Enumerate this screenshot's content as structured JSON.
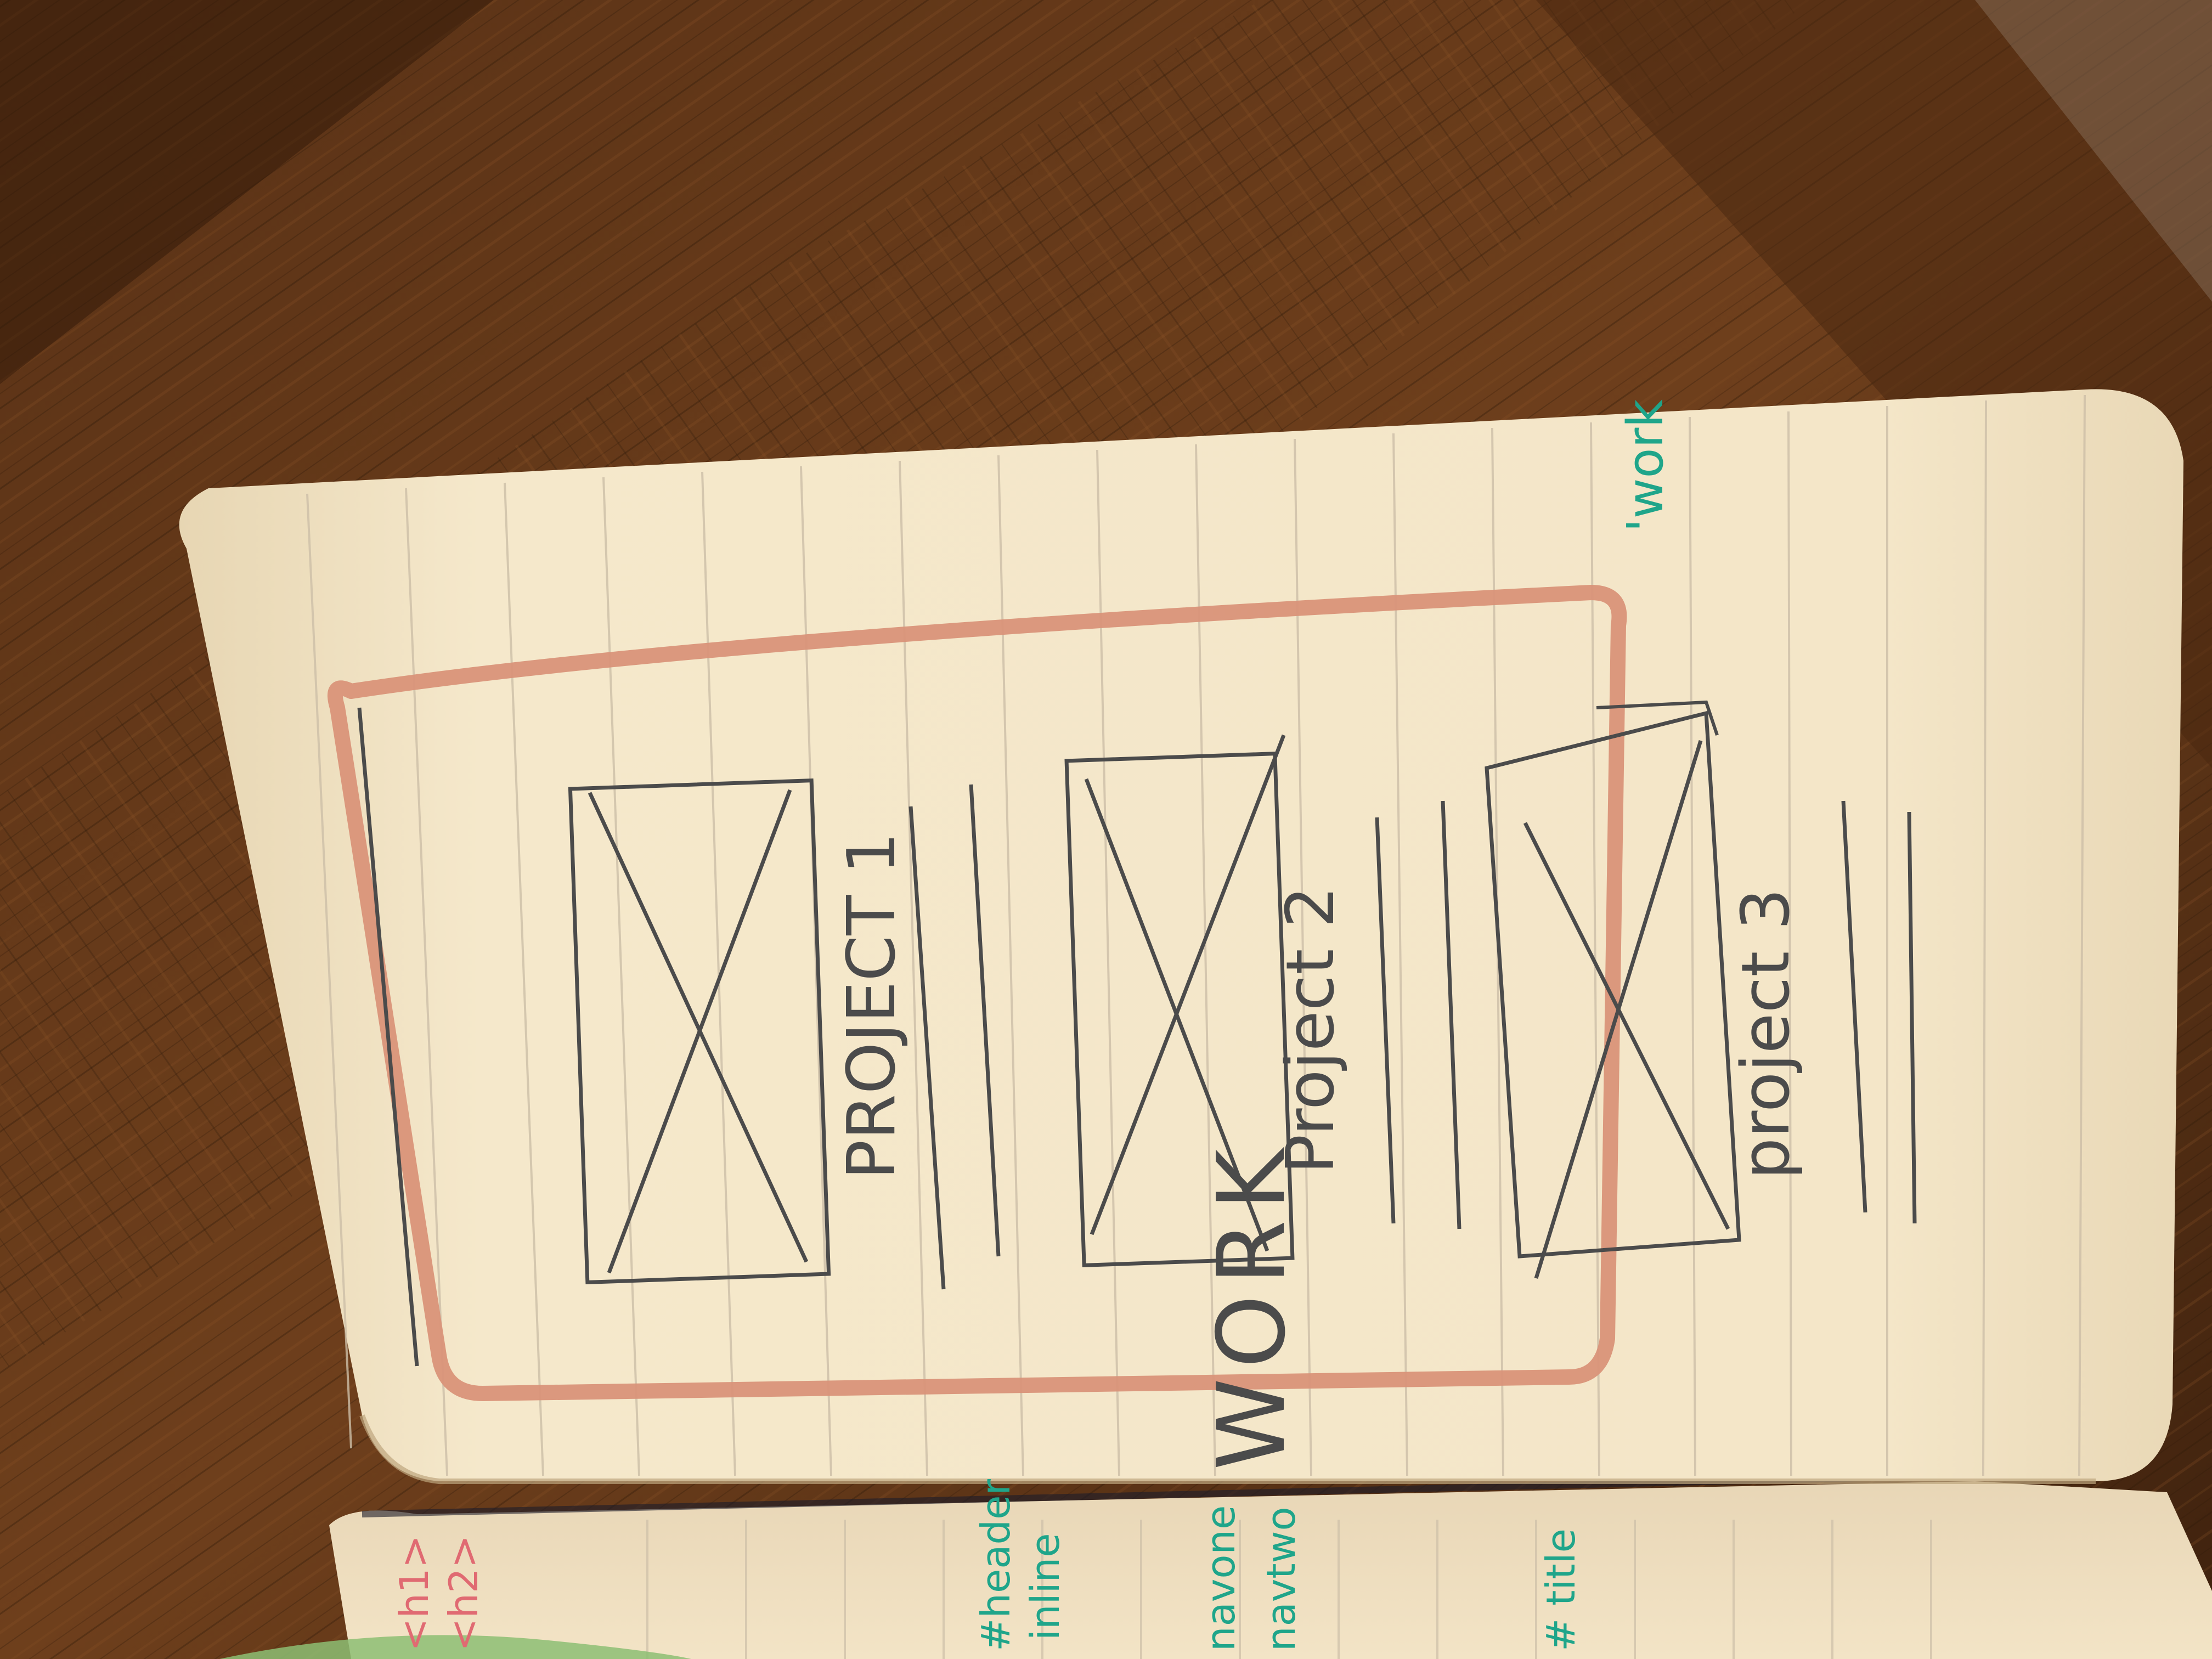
{
  "colors": {
    "wood_dark": "#3c200d",
    "wood_mid": "#5e3518",
    "wood_light": "#7a4822",
    "paper": "#f4e6c8",
    "paper_shade": "#d9c39c",
    "rule_line": "#cdbfa8",
    "pencil": "#4b4b4b",
    "salmon_marker": "#d99379",
    "teal_ink": "#1fa58a",
    "pink_ink": "#e06a72",
    "green_highlight": "#8dbe73"
  },
  "sketch": {
    "annotation": "'work",
    "heading": "WORK",
    "projects": [
      {
        "label": "PROJECT 1"
      },
      {
        "label": "Project 2"
      },
      {
        "label": "project 3"
      }
    ]
  },
  "left_page_notes": {
    "tags": [
      "<h1>",
      "<h2>"
    ],
    "header_note": [
      "#header",
      "inline"
    ],
    "nav_notes": [
      "navone",
      "navtwo"
    ],
    "title_note": "# title"
  }
}
